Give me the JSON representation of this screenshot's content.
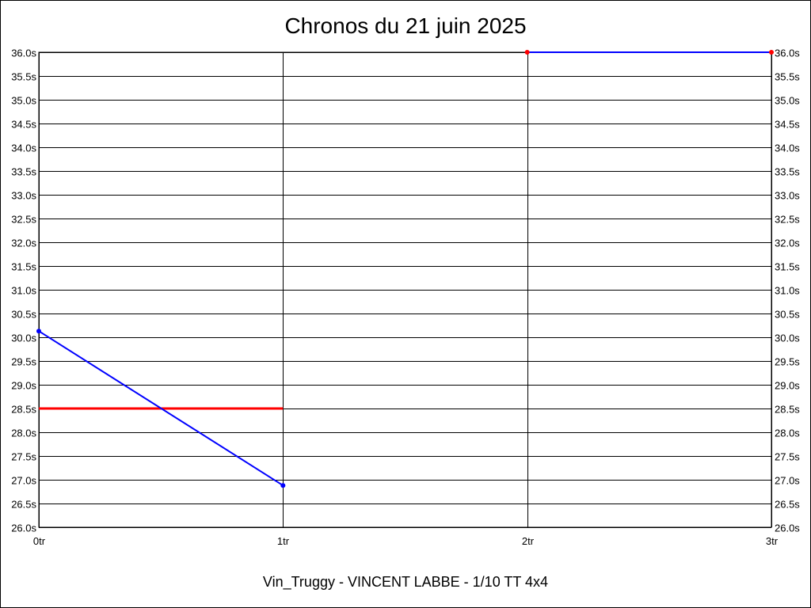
{
  "chart_data": {
    "type": "line",
    "title": "Chronos du 21 juin 2025",
    "subtitle": "Vin_Truggy - VINCENT LABBE - 1/10 TT 4x4",
    "xlabel": "",
    "ylabel": "",
    "x_ticks": [
      {
        "value": 0,
        "label": "0tr"
      },
      {
        "value": 1,
        "label": "1tr"
      },
      {
        "value": 2,
        "label": "2tr"
      },
      {
        "value": 3,
        "label": "3tr"
      }
    ],
    "xlim": [
      0,
      3
    ],
    "ylim": [
      26.0,
      36.0
    ],
    "y_tick_step": 0.5,
    "y_tick_suffix": "s",
    "grid": true,
    "y_axis_labels": "both sides",
    "series": [
      {
        "color": "#0000ff",
        "marker_color": "#0000ff",
        "points": [
          [
            0,
            30.13
          ],
          [
            1,
            26.88
          ]
        ]
      },
      {
        "color": "#0000ff",
        "marker_color": "#ff0000",
        "points": [
          [
            2,
            36.0
          ],
          [
            3,
            36.0
          ]
        ]
      }
    ],
    "reference_lines": [
      {
        "color": "#ff0000",
        "y": 28.5,
        "x_from": 0,
        "x_to": 1
      }
    ]
  }
}
